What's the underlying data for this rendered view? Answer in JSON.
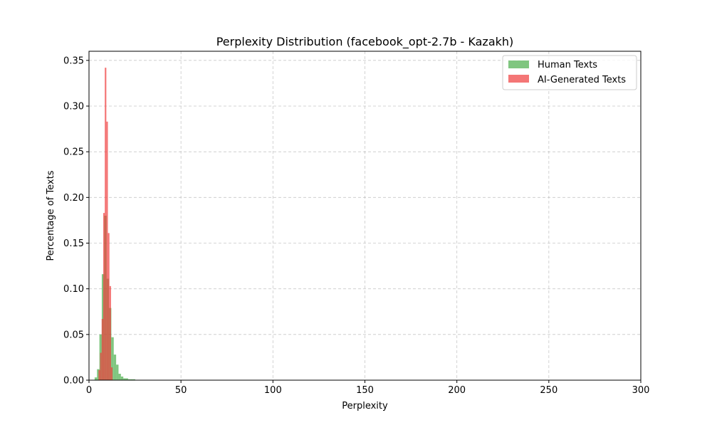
{
  "chart_data": {
    "type": "histogram",
    "title": "Perplexity Distribution (facebook_opt-2.7b - Kazakh)",
    "xlabel": "Perplexity",
    "ylabel": "Percentage of Texts",
    "xlim": [
      0,
      300
    ],
    "ylim": [
      0,
      0.36
    ],
    "xticks": [
      0,
      50,
      100,
      150,
      200,
      250,
      300
    ],
    "xtick_labels": [
      "0",
      "50",
      "100",
      "150",
      "200",
      "250",
      "300"
    ],
    "yticks": [
      0.0,
      0.05,
      0.1,
      0.15,
      0.2,
      0.25,
      0.3,
      0.35
    ],
    "ytick_labels": [
      "0.00",
      "0.05",
      "0.10",
      "0.15",
      "0.20",
      "0.25",
      "0.30",
      "0.35"
    ],
    "grid": true,
    "legend_position": "top-right",
    "series": [
      {
        "name": "Human Texts",
        "color": "#2ca02c",
        "opacity": 0.6,
        "bin_width": 1.3,
        "bins": [
          {
            "x": 3.7,
            "y": 0.003
          },
          {
            "x": 5.0,
            "y": 0.012
          },
          {
            "x": 6.3,
            "y": 0.05
          },
          {
            "x": 7.6,
            "y": 0.116
          },
          {
            "x": 8.9,
            "y": 0.18
          },
          {
            "x": 10.2,
            "y": 0.111
          },
          {
            "x": 11.5,
            "y": 0.079
          },
          {
            "x": 12.8,
            "y": 0.047
          },
          {
            "x": 14.1,
            "y": 0.028
          },
          {
            "x": 15.4,
            "y": 0.017
          },
          {
            "x": 16.7,
            "y": 0.007
          },
          {
            "x": 18.0,
            "y": 0.004
          },
          {
            "x": 19.3,
            "y": 0.002
          },
          {
            "x": 20.6,
            "y": 0.002
          },
          {
            "x": 21.9,
            "y": 0.001
          },
          {
            "x": 23.2,
            "y": 0.001
          },
          {
            "x": 24.5,
            "y": 0.001
          }
        ]
      },
      {
        "name": "AI-Generated Texts",
        "color": "#f03c3c",
        "opacity": 0.7,
        "bin_width": 0.85,
        "bins": [
          {
            "x": 5.6,
            "y": 0.011
          },
          {
            "x": 6.45,
            "y": 0.03
          },
          {
            "x": 7.3,
            "y": 0.067
          },
          {
            "x": 8.15,
            "y": 0.183
          },
          {
            "x": 9.0,
            "y": 0.342
          },
          {
            "x": 9.85,
            "y": 0.283
          },
          {
            "x": 10.7,
            "y": 0.161
          },
          {
            "x": 11.55,
            "y": 0.103
          },
          {
            "x": 12.4,
            "y": 0.014
          }
        ]
      }
    ]
  }
}
